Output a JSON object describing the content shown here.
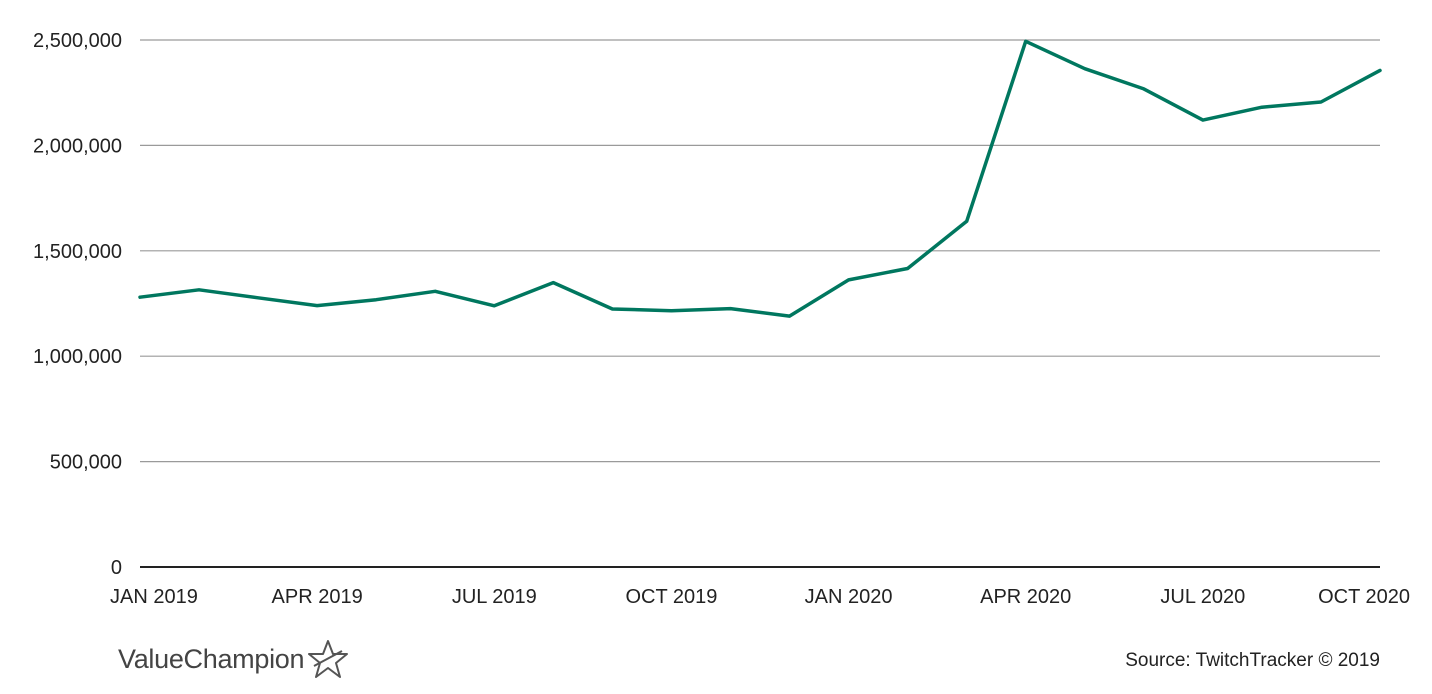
{
  "chart_data": {
    "type": "line",
    "title": "",
    "xlabel": "",
    "ylabel": "",
    "ylim": [
      0,
      2500000
    ],
    "yticks": [
      0,
      500000,
      1000000,
      1500000,
      2000000,
      2500000
    ],
    "ytick_labels": [
      "0",
      "500,000",
      "1,000,000",
      "1,500,000",
      "2,000,000",
      "2,500,000"
    ],
    "xtick_labels": [
      "JAN 2019",
      "APR 2019",
      "JUL 2019",
      "OCT 2019",
      "JAN 2020",
      "APR 2020",
      "JUL 2020",
      "OCT 2020"
    ],
    "xtick_indices": [
      0,
      3,
      6,
      9,
      12,
      15,
      18,
      21
    ],
    "grid": true,
    "legend": "none",
    "series": [
      {
        "color": "#00775F",
        "x": [
          "2019-01",
          "2019-02",
          "2019-03",
          "2019-04",
          "2019-05",
          "2019-06",
          "2019-07",
          "2019-08",
          "2019-09",
          "2019-10",
          "2019-11",
          "2019-12",
          "2020-01",
          "2020-02",
          "2020-03",
          "2020-04",
          "2020-05",
          "2020-06",
          "2020-07",
          "2020-08",
          "2020-09",
          "2020-10"
        ],
        "values": [
          1280000,
          1315000,
          1277000,
          1240000,
          1268000,
          1308000,
          1239000,
          1349000,
          1224000,
          1216000,
          1226000,
          1190000,
          1362000,
          1416000,
          1640000,
          2494000,
          2364000,
          2268000,
          2120000,
          2181000,
          2206000,
          2356000
        ]
      }
    ]
  },
  "footer": {
    "logo_text": "ValueChampion",
    "logo_icon": "star-outline-icon",
    "source": "Source: TwitchTracker © 2019"
  },
  "colors": {
    "line": "#00775F",
    "grid": "#9A9A9A",
    "axis": "#222222",
    "text": "#222222"
  }
}
